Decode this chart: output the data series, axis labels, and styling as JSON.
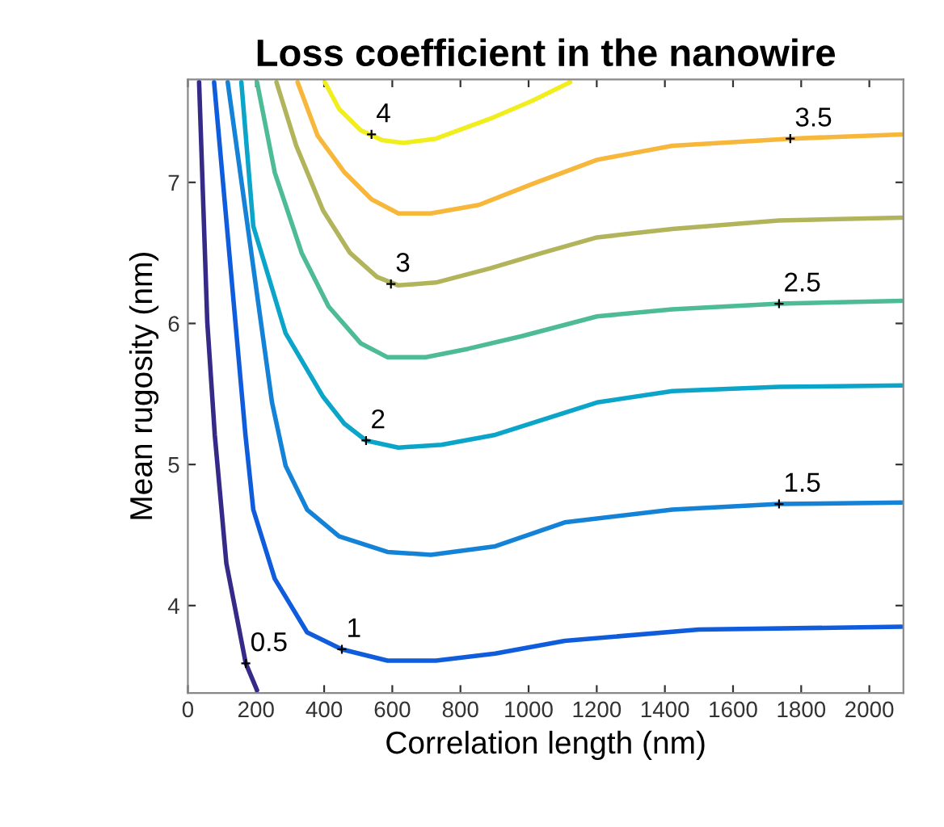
{
  "chart_data": {
    "type": "line",
    "title": "Loss coefficient in the nanowire",
    "xlabel": "Correlation length (nm)",
    "ylabel": "Mean rugosity (nm)",
    "xlim": [
      0,
      2100
    ],
    "ylim": [
      3.38,
      7.73
    ],
    "xticks": [
      0,
      200,
      400,
      600,
      800,
      1000,
      1200,
      1400,
      1600,
      1800,
      2000
    ],
    "yticks": [
      4,
      5,
      6,
      7
    ],
    "grid": false,
    "legend": false,
    "series": [
      {
        "color": "#352a87",
        "x": [
          33,
          57,
          79,
          113,
          170,
          203
        ],
        "values": [
          7.71,
          6.01,
          5.21,
          4.3,
          3.59,
          3.4
        ]
      },
      {
        "color": "#0f5cdd",
        "x": [
          77,
          169,
          192,
          255,
          350,
          452,
          586,
          728,
          902,
          1106,
          1499,
          2095
        ],
        "values": [
          7.71,
          5.21,
          4.68,
          4.19,
          3.81,
          3.69,
          3.61,
          3.61,
          3.66,
          3.75,
          3.83,
          3.85
        ]
      },
      {
        "color": "#1482d6",
        "x": [
          117,
          247,
          287,
          350,
          444,
          586,
          713,
          902,
          1106,
          1422,
          1735,
          2095
        ],
        "values": [
          7.71,
          5.44,
          4.99,
          4.68,
          4.49,
          4.38,
          4.36,
          4.42,
          4.59,
          4.68,
          4.72,
          4.73
        ]
      },
      {
        "color": "#0aa5c8",
        "x": [
          157,
          192,
          287,
          397,
          459,
          523,
          618,
          744,
          902,
          1201,
          1422,
          1735,
          2095
        ],
        "values": [
          7.71,
          6.69,
          5.93,
          5.48,
          5.29,
          5.17,
          5.12,
          5.14,
          5.21,
          5.44,
          5.52,
          5.55,
          5.56
        ]
      },
      {
        "color": "#4dbb96",
        "x": [
          203,
          255,
          334,
          413,
          507,
          586,
          696,
          822,
          980,
          1201,
          1422,
          1735,
          2095
        ],
        "values": [
          7.71,
          7.07,
          6.5,
          6.12,
          5.86,
          5.76,
          5.76,
          5.82,
          5.91,
          6.05,
          6.1,
          6.14,
          6.16
        ]
      },
      {
        "color": "#b2b45c",
        "x": [
          260,
          318,
          397,
          476,
          555,
          618,
          728,
          886,
          1040,
          1201,
          1422,
          1735,
          2095
        ],
        "values": [
          7.71,
          7.26,
          6.8,
          6.5,
          6.33,
          6.27,
          6.29,
          6.39,
          6.5,
          6.61,
          6.67,
          6.73,
          6.75
        ]
      },
      {
        "color": "#f7b73a",
        "x": [
          322,
          381,
          460,
          539,
          618,
          713,
          854,
          1012,
          1201,
          1422,
          1768,
          2095
        ],
        "values": [
          7.71,
          7.33,
          7.07,
          6.88,
          6.78,
          6.78,
          6.84,
          6.99,
          7.16,
          7.26,
          7.31,
          7.34
        ]
      },
      {
        "color": "#f0ee1e",
        "x": [
          402,
          444,
          507,
          570,
          633,
          728,
          886,
          1012,
          1122
        ],
        "values": [
          7.71,
          7.52,
          7.37,
          7.3,
          7.28,
          7.31,
          7.45,
          7.58,
          7.71
        ]
      }
    ],
    "annotations": [
      {
        "text": "0.5",
        "x": 170,
        "y": 3.59
      },
      {
        "text": "1",
        "x": 452,
        "y": 3.69
      },
      {
        "text": "1.5",
        "x": 1735,
        "y": 4.72
      },
      {
        "text": "2",
        "x": 523,
        "y": 5.17
      },
      {
        "text": "2.5",
        "x": 1735,
        "y": 6.14
      },
      {
        "text": "3",
        "x": 596,
        "y": 6.28
      },
      {
        "text": "3.5",
        "x": 1768,
        "y": 7.31
      },
      {
        "text": "4",
        "x": 539,
        "y": 7.34
      }
    ]
  }
}
